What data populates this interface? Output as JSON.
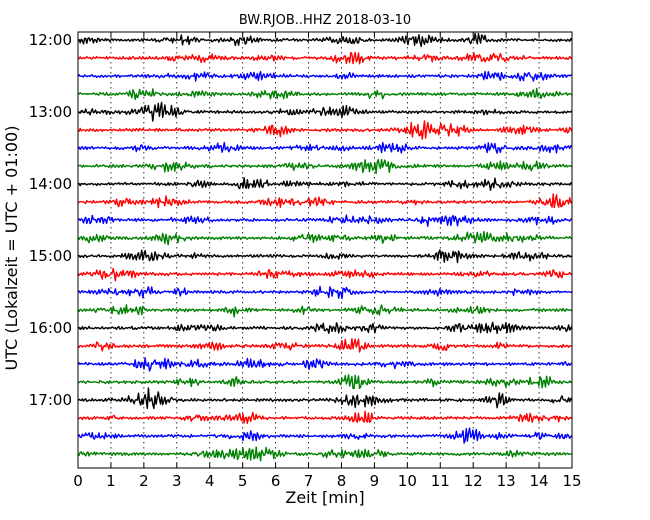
{
  "chart_data": {
    "type": "line",
    "title": "BW.RJOB..HHZ 2018-03-10",
    "xlabel": "Zeit  [min]",
    "ylabel": "UTC (Lokalzeit = UTC + 01:00)",
    "xlim": [
      0,
      15
    ],
    "x_ticks": [
      "0",
      "1",
      "2",
      "3",
      "4",
      "5",
      "6",
      "7",
      "8",
      "9",
      "10",
      "11",
      "12",
      "13",
      "14",
      "15"
    ],
    "y_ticks": [
      "12:00",
      "13:00",
      "14:00",
      "15:00",
      "16:00",
      "17:00"
    ],
    "grid": true,
    "trace_colors": [
      "#000000",
      "#ff0000",
      "#0000ff",
      "#008000"
    ],
    "rows": [
      "12:00",
      "12:15",
      "12:30",
      "12:45",
      "13:00",
      "13:15",
      "13:30",
      "13:45",
      "14:00",
      "14:15",
      "14:30",
      "14:45",
      "15:00",
      "15:15",
      "15:30",
      "15:45",
      "16:00",
      "16:15",
      "16:30",
      "16:45",
      "17:00",
      "17:15",
      "17:30",
      "17:45"
    ]
  }
}
